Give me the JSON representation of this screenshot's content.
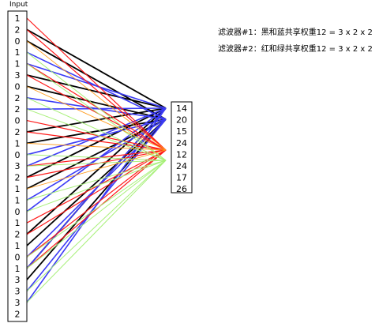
{
  "input_title": "Input",
  "input_values": [
    "1",
    "2",
    "0",
    "1",
    "1",
    "3",
    "0",
    "2",
    "2",
    "0",
    "2",
    "1",
    "0",
    "3",
    "2",
    "1",
    "1",
    "0",
    "1",
    "2",
    "1",
    "0",
    "1",
    "3",
    "3",
    "3",
    "2"
  ],
  "output_values": [
    "14",
    "20",
    "15",
    "24",
    "12",
    "24",
    "17",
    "26"
  ],
  "notes": [
    "滤波器#1：黑和蓝共享权重12 = 3 x 2 x 2",
    "滤波器#2：红和绿共享权重12 = 3 x 2 x 2"
  ],
  "colors": {
    "black": "#000000",
    "blue": "#3b3bf5",
    "red": "#ff1a1a",
    "green": "#a8f07a",
    "orange": "#ff9a1a"
  },
  "connections": [
    {
      "color": "black",
      "sources": [
        1,
        5,
        10,
        14,
        19,
        22
      ],
      "target": 0
    },
    {
      "color": "black",
      "sources": [
        2,
        6,
        11,
        15,
        20,
        23
      ],
      "target": 1
    },
    {
      "color": "blue",
      "sources": [
        3,
        7,
        12,
        16,
        21,
        24
      ],
      "target": 1
    },
    {
      "color": "blue",
      "sources": [
        4,
        8,
        13,
        17,
        22,
        25
      ],
      "target": 0
    },
    {
      "color": "red",
      "sources": [
        0,
        4,
        9,
        13,
        18,
        21
      ],
      "target": 4
    },
    {
      "color": "red",
      "sources": [
        1,
        5,
        10,
        14,
        19,
        22
      ],
      "target": 4
    },
    {
      "color": "green",
      "sources": [
        3,
        7,
        12,
        16,
        21,
        24
      ],
      "target": 5
    },
    {
      "color": "green",
      "sources": [
        4,
        8,
        13,
        17,
        22,
        25
      ],
      "target": 5
    },
    {
      "color": "orange",
      "sources": [
        2,
        6,
        11,
        15
      ],
      "target": 4
    }
  ]
}
